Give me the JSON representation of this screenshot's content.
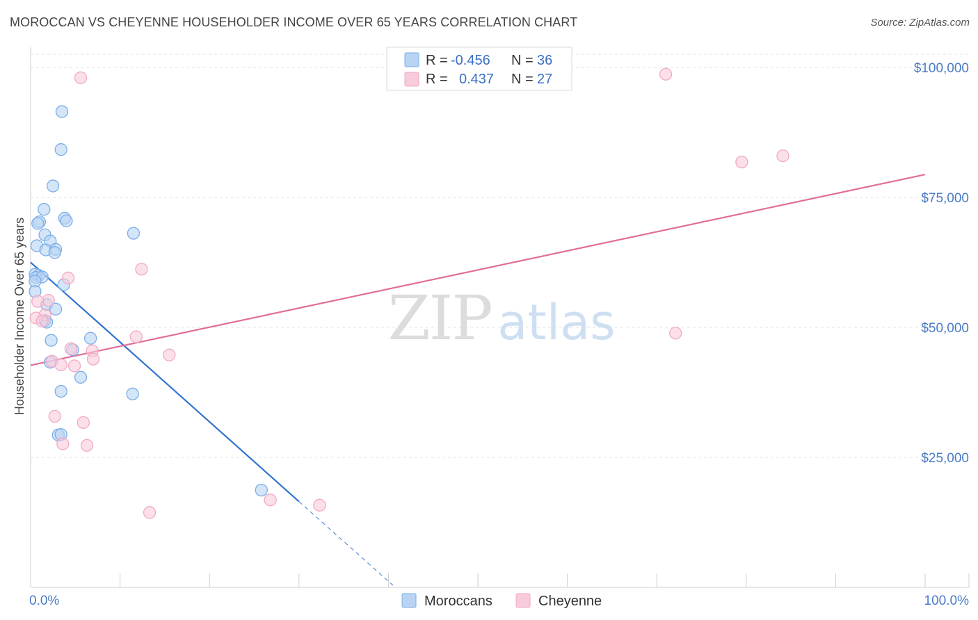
{
  "title": "MOROCCAN VS CHEYENNE HOUSEHOLDER INCOME OVER 65 YEARS CORRELATION CHART",
  "source": "Source: ZipAtlas.com",
  "watermark": {
    "zip": "ZIP",
    "atlas": "atlas"
  },
  "chart_data": {
    "type": "scatter",
    "xlabel": "",
    "ylabel": "Householder Income Over 65 years",
    "xlim": [
      0,
      100
    ],
    "ylim": [
      0,
      105000
    ],
    "x_tick_labels": [
      "0.0%",
      "100.0%"
    ],
    "y_ticks": [
      25000,
      50000,
      75000,
      100000
    ],
    "y_tick_labels": [
      "$25,000",
      "$50,000",
      "$75,000",
      "$100,000"
    ],
    "grid": true,
    "legend_position": "top-center",
    "stats": [
      {
        "series": "Moroccans",
        "r_label": "R =",
        "r_value": "-0.456",
        "n_label": "N =",
        "n_value": "36"
      },
      {
        "series": "Cheyenne",
        "r_label": "R =",
        "r_value": " 0.437",
        "n_label": "N =",
        "n_value": "27"
      }
    ],
    "series": [
      {
        "name": "Moroccans",
        "color": "#7aaee8",
        "fill": "#b9d3f3",
        "line_color": "#2f73d0",
        "trend": {
          "x0": 0,
          "y0": 62500,
          "x1": 30,
          "y1": 16500,
          "dash_to_x": 40.5
        },
        "points": [
          [
            3.5,
            91500
          ],
          [
            3.4,
            84200
          ],
          [
            2.5,
            77200
          ],
          [
            1.5,
            72700
          ],
          [
            3.8,
            71000
          ],
          [
            1.0,
            70300
          ],
          [
            4.0,
            70500
          ],
          [
            0.8,
            70000
          ],
          [
            11.5,
            68100
          ],
          [
            1.6,
            67800
          ],
          [
            2.2,
            66600
          ],
          [
            0.7,
            65700
          ],
          [
            1.7,
            64900
          ],
          [
            2.8,
            65000
          ],
          [
            2.7,
            64400
          ],
          [
            0.5,
            60200
          ],
          [
            0.9,
            60000
          ],
          [
            0.6,
            59600
          ],
          [
            1.3,
            59700
          ],
          [
            0.5,
            58900
          ],
          [
            3.7,
            58200
          ],
          [
            0.5,
            56900
          ],
          [
            1.8,
            54400
          ],
          [
            2.8,
            53500
          ],
          [
            1.6,
            51300
          ],
          [
            1.8,
            51000
          ],
          [
            6.7,
            47900
          ],
          [
            2.3,
            47500
          ],
          [
            4.7,
            45700
          ],
          [
            2.2,
            43300
          ],
          [
            5.6,
            40400
          ],
          [
            3.4,
            37700
          ],
          [
            11.4,
            37200
          ],
          [
            3.1,
            29300
          ],
          [
            3.4,
            29400
          ],
          [
            25.8,
            18700
          ]
        ]
      },
      {
        "name": "Cheyenne",
        "color": "#f2a9c4",
        "fill": "#f8cbdc",
        "line_color": "#e06e98",
        "trend": {
          "x0": 0,
          "y0": 42700,
          "x1": 100,
          "y1": 79400
        },
        "points": [
          [
            5.6,
            98000
          ],
          [
            71.0,
            98700
          ],
          [
            79.5,
            81800
          ],
          [
            84.1,
            83000
          ],
          [
            12.4,
            61200
          ],
          [
            4.2,
            59500
          ],
          [
            2.0,
            55200
          ],
          [
            0.8,
            55000
          ],
          [
            1.6,
            52400
          ],
          [
            0.6,
            51800
          ],
          [
            1.3,
            51200
          ],
          [
            11.8,
            48200
          ],
          [
            72.1,
            48900
          ],
          [
            6.9,
            45500
          ],
          [
            4.5,
            45900
          ],
          [
            15.5,
            44700
          ],
          [
            7.0,
            43900
          ],
          [
            2.4,
            43500
          ],
          [
            3.4,
            42800
          ],
          [
            4.9,
            42600
          ],
          [
            2.7,
            32900
          ],
          [
            5.9,
            31700
          ],
          [
            3.6,
            27600
          ],
          [
            6.3,
            27300
          ],
          [
            26.8,
            16800
          ],
          [
            32.3,
            15800
          ],
          [
            13.3,
            14400
          ]
        ]
      }
    ]
  }
}
